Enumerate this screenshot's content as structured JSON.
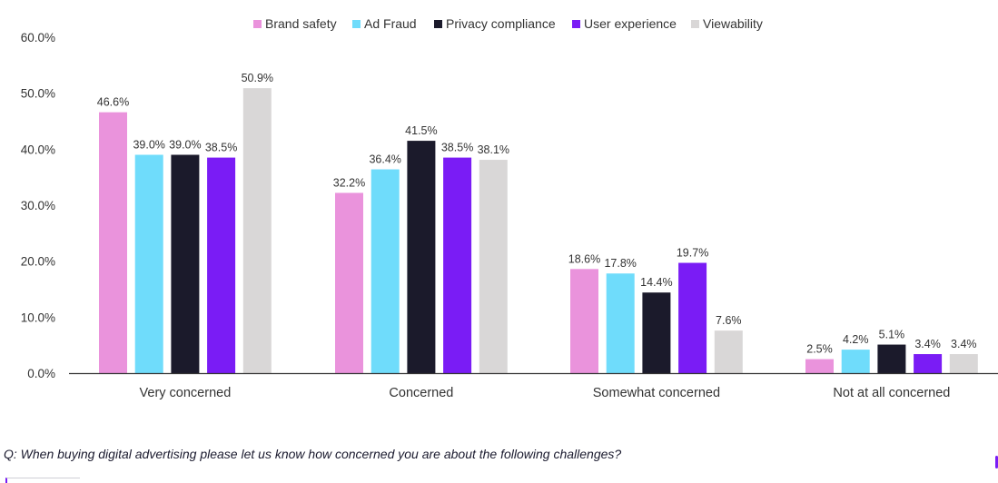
{
  "chart_data": {
    "type": "bar",
    "title": "",
    "xlabel": "",
    "ylabel": "",
    "ylim": [
      0,
      60
    ],
    "y_ticks": [
      0,
      10,
      20,
      30,
      40,
      50,
      60
    ],
    "y_tick_labels": [
      "0.0%",
      "10.0%",
      "20.0%",
      "30.0%",
      "40.0%",
      "50.0%",
      "60.0%"
    ],
    "categories": [
      "Very concerned",
      "Concerned",
      "Somewhat concerned",
      "Not at all concerned"
    ],
    "legend_position": "top-center",
    "grid": false,
    "series": [
      {
        "name": "Brand safety",
        "color": "#ea93dc",
        "values": [
          46.6,
          32.2,
          18.6,
          2.5
        ],
        "labels": [
          "46.6%",
          "32.2%",
          "18.6%",
          "2.5%"
        ]
      },
      {
        "name": "Ad Fraud",
        "color": "#6fdcfb",
        "values": [
          39.0,
          36.4,
          17.8,
          4.2
        ],
        "labels": [
          "39.0%",
          "36.4%",
          "17.8%",
          "4.2%"
        ]
      },
      {
        "name": "Privacy compliance",
        "color": "#1b1a2b",
        "values": [
          39.0,
          41.5,
          14.4,
          5.1
        ],
        "labels": [
          "39.0%",
          "41.5%",
          "14.4%",
          "5.1%"
        ]
      },
      {
        "name": "User experience",
        "color": "#7a1cf5",
        "values": [
          38.5,
          38.5,
          19.7,
          3.4
        ],
        "labels": [
          "38.5%",
          "38.5%",
          "19.7%",
          "3.4%"
        ]
      },
      {
        "name": "Viewability",
        "color": "#d9d7d7",
        "values": [
          50.9,
          38.1,
          7.6,
          3.4
        ],
        "labels": [
          "50.9%",
          "38.1%",
          "7.6%",
          "3.4%"
        ]
      }
    ]
  },
  "question": "Q: When buying digital advertising please let us know how concerned you are about the following challenges?",
  "colors": {
    "axis": "#333333",
    "text": "#333333",
    "accent": "#7a1cf5"
  }
}
